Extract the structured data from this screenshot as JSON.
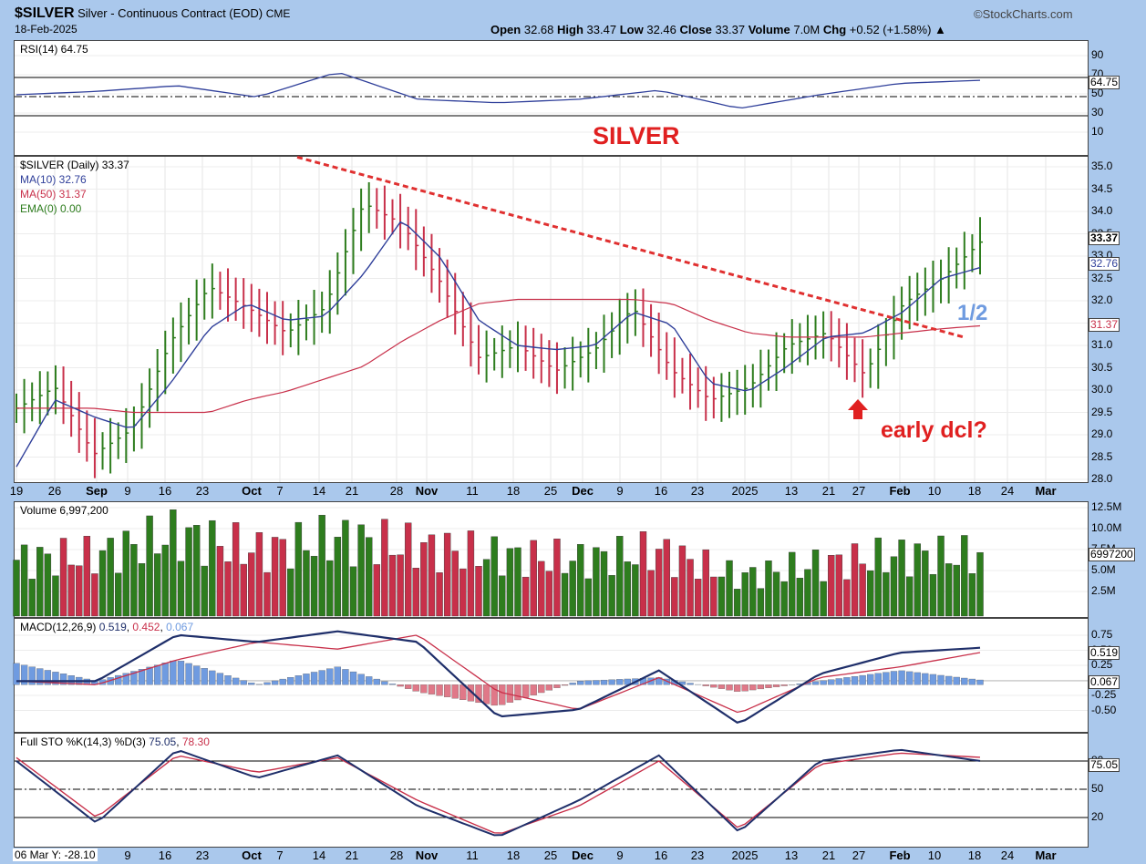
{
  "header": {
    "symbol": "$SILVER",
    "name": "Silver - Continuous Contract (EOD)",
    "exchange": "CME",
    "date": "18-Feb-2025",
    "brand": "©StockCharts.com",
    "open_label": "Open",
    "open": "32.68",
    "high_label": "High",
    "high": "33.47",
    "low_label": "Low",
    "low": "32.46",
    "close_label": "Close",
    "close": "33.37",
    "volume_label": "Volume",
    "volume": "7.0M",
    "chg_label": "Chg",
    "chg": "+0.52 (+1.58%)",
    "chg_arrow": "▲"
  },
  "rsi": {
    "legend": "RSI(14) 64.75",
    "value_tag": "64.75",
    "ticks": [
      "90",
      "70",
      "50",
      "30",
      "10"
    ]
  },
  "price": {
    "legend_main": "$SILVER (Daily) 33.37",
    "legend_ma10": "MA(10) 32.76",
    "legend_ma50": "MA(50) 31.37",
    "legend_ema": "EMA(0) 0.00",
    "ticks": [
      "35.0",
      "34.5",
      "34.0",
      "33.5",
      "33.0",
      "32.5",
      "32.0",
      "31.5",
      "31.0",
      "30.5",
      "30.0",
      "29.5",
      "29.0",
      "28.5",
      "28.0"
    ],
    "tags": [
      "33.37",
      "32.76",
      "31.37"
    ]
  },
  "annotations": {
    "title": "SILVER",
    "half": "1/2",
    "dcl": "early dcl?"
  },
  "volume": {
    "legend": "Volume 6,997,200",
    "tag": "6997200",
    "ticks": [
      "12.5M",
      "10.0M",
      "7.5M",
      "5.0M",
      "2.5M"
    ]
  },
  "macd": {
    "legend_label": "MACD(12,26,9)",
    "v1": "0.519",
    "v2": "0.452",
    "v3": "0.067",
    "tags": [
      "0.519",
      "0.067"
    ],
    "ticks": [
      "0.75",
      "0.50",
      "0.25",
      "0.00",
      "-0.25",
      "-0.50"
    ]
  },
  "sto": {
    "legend_label": "Full STO %K(14,3) %D(3)",
    "k": "75.05",
    "d": "78.30",
    "tag": "75.05",
    "ticks": [
      "80",
      "50",
      "20"
    ]
  },
  "x_labels_main": [
    "19",
    "26",
    "Sep",
    "9",
    "16",
    "23",
    "Oct",
    "7",
    "14",
    "21",
    "28",
    "Nov",
    "11",
    "18",
    "25",
    "Dec",
    "9",
    "16",
    "23",
    "2025",
    "13",
    "21",
    "27",
    "Feb",
    "10",
    "18",
    "24",
    "Mar"
  ],
  "x_labels_bottom": [
    "06 Mar Y: -28.10",
    "9",
    "16",
    "23",
    "Oct",
    "7",
    "14",
    "21",
    "28",
    "Nov",
    "11",
    "18",
    "25",
    "Dec",
    "9",
    "16",
    "23",
    "2025",
    "13",
    "21",
    "27",
    "Feb",
    "10",
    "18",
    "24",
    "Mar"
  ],
  "colors": {
    "up": "#2e7d1e",
    "down": "#c8304a",
    "ma10": "#2f3f9a",
    "ma50": "#c8304a",
    "trend": "#e03030",
    "hist_pos": "#6f9be0",
    "hist_neg": "#e07888",
    "macd": "#1f2f6a"
  },
  "chart_data": [
    {
      "type": "line",
      "title": "SILVER",
      "ylim": [
        27.7,
        35.3
      ],
      "x": [
        "Aug 19",
        "Aug 26",
        "Sep 3",
        "Sep 9",
        "Sep 16",
        "Sep 23",
        "Oct 1",
        "Oct 7",
        "Oct 14",
        "Oct 21",
        "Oct 28",
        "Nov 4",
        "Nov 11",
        "Nov 18",
        "Nov 25",
        "Dec 2",
        "Dec 9",
        "Dec 16",
        "Dec 23",
        "Jan 2",
        "Jan 13",
        "Jan 21",
        "Jan 27",
        "Feb 3",
        "Feb 10",
        "Feb 18"
      ],
      "series": [
        {
          "name": "$SILVER close",
          "values": [
            29.4,
            29.9,
            28.3,
            28.9,
            31.0,
            32.3,
            31.8,
            31.2,
            31.8,
            34.3,
            33.8,
            32.4,
            30.6,
            30.9,
            30.3,
            30.8,
            31.8,
            30.3,
            29.6,
            29.9,
            30.9,
            31.2,
            30.2,
            31.9,
            32.5,
            33.37
          ]
        },
        {
          "name": "MA(10)",
          "values": [
            28.0,
            29.6,
            29.2,
            28.9,
            30.0,
            31.3,
            31.9,
            31.5,
            31.6,
            32.6,
            33.9,
            33.0,
            31.5,
            30.9,
            30.8,
            30.9,
            31.7,
            31.4,
            30.0,
            29.8,
            30.4,
            31.1,
            31.2,
            31.7,
            32.5,
            32.76
          ]
        },
        {
          "name": "MA(50)",
          "values": [
            29.4,
            29.4,
            29.4,
            29.3,
            29.3,
            29.3,
            29.6,
            29.8,
            30.1,
            30.4,
            31.0,
            31.5,
            31.9,
            32.0,
            32.0,
            32.0,
            32.0,
            31.9,
            31.5,
            31.2,
            31.1,
            31.1,
            31.1,
            31.2,
            31.3,
            31.37
          ]
        }
      ],
      "trendline": {
        "from": [
          "Oct 10",
          35.4
        ],
        "to": [
          "Feb 18",
          31.1
        ],
        "style": "dashed"
      }
    },
    {
      "type": "line",
      "title": "RSI(14)",
      "ylim": [
        0,
        100
      ],
      "x": [
        "Aug 19",
        "Sep 9",
        "Sep 23",
        "Oct 7",
        "Oct 21",
        "Nov 4",
        "Nov 18",
        "Dec 2",
        "Dec 16",
        "Jan 2",
        "Jan 21",
        "Feb 3",
        "Feb 18"
      ],
      "values": [
        52,
        55,
        60,
        50,
        72,
        48,
        45,
        48,
        56,
        40,
        52,
        62,
        64.75
      ]
    },
    {
      "type": "bar",
      "title": "Volume",
      "ylim": [
        0,
        13000000
      ],
      "x": [
        "Aug 19",
        "Sep 9",
        "Sep 23",
        "Oct 7",
        "Oct 21",
        "Nov 4",
        "Nov 18",
        "Dec 2",
        "Dec 16",
        "Jan 2",
        "Jan 21",
        "Feb 3",
        "Feb 18"
      ],
      "values": [
        6500000,
        7000000,
        9500000,
        7500000,
        9000000,
        8000000,
        7000000,
        6500000,
        7500000,
        4500000,
        6000000,
        7000000,
        6997200
      ]
    },
    {
      "type": "line",
      "title": "MACD(12,26,9)",
      "ylim": [
        -0.65,
        0.9
      ],
      "x": [
        "Aug 19",
        "Sep 9",
        "Sep 23",
        "Oct 7",
        "Oct 21",
        "Nov 4",
        "Nov 18",
        "Dec 2",
        "Dec 16",
        "Jan 2",
        "Jan 21",
        "Feb 3",
        "Feb 18"
      ],
      "series": [
        {
          "name": "MACD",
          "values": [
            0.05,
            0.05,
            0.7,
            0.6,
            0.75,
            0.6,
            -0.45,
            -0.35,
            0.2,
            -0.55,
            0.15,
            0.45,
            0.519
          ]
        },
        {
          "name": "Signal",
          "values": [
            0.05,
            0.0,
            0.35,
            0.6,
            0.5,
            0.7,
            -0.1,
            -0.35,
            0.1,
            -0.4,
            0.1,
            0.25,
            0.452
          ]
        },
        {
          "name": "Histogram",
          "values": [
            0.3,
            0.05,
            0.35,
            0.0,
            0.25,
            -0.1,
            -0.3,
            0.05,
            0.1,
            -0.1,
            0.05,
            0.2,
            0.067
          ]
        }
      ]
    },
    {
      "type": "line",
      "title": "Full STO %K(14,3) %D(3)",
      "ylim": [
        0,
        100
      ],
      "x": [
        "Aug 19",
        "Sep 9",
        "Sep 23",
        "Oct 7",
        "Oct 21",
        "Nov 4",
        "Nov 18",
        "Dec 2",
        "Dec 16",
        "Jan 2",
        "Jan 21",
        "Feb 3",
        "Feb 18"
      ],
      "series": [
        {
          "name": "%K",
          "values": [
            75,
            20,
            85,
            60,
            80,
            35,
            8,
            40,
            80,
            12,
            75,
            85,
            75.05
          ]
        },
        {
          "name": "%D",
          "values": [
            78,
            25,
            80,
            65,
            78,
            40,
            10,
            35,
            75,
            15,
            72,
            82,
            78.3
          ]
        }
      ]
    }
  ]
}
